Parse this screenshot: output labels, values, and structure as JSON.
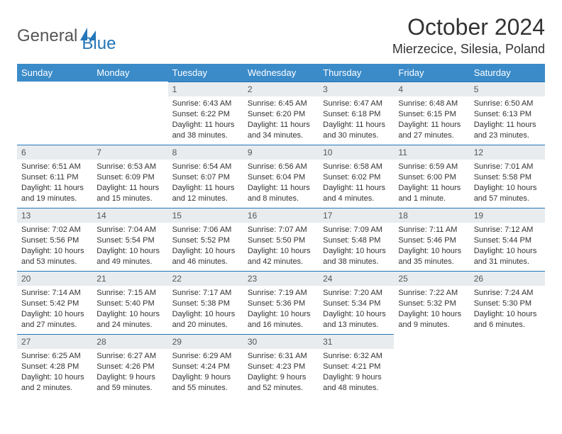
{
  "logo": {
    "part1": "General",
    "part2": "Blue"
  },
  "title": "October 2024",
  "location": "Mierzecice, Silesia, Poland",
  "colors": {
    "header_bg": "#3b8bc9",
    "daynum_bg": "#e8ecef",
    "border": "#2476b8",
    "logo_blue": "#2476b8",
    "text": "#333333"
  },
  "daynames": [
    "Sunday",
    "Monday",
    "Tuesday",
    "Wednesday",
    "Thursday",
    "Friday",
    "Saturday"
  ],
  "weeks": [
    [
      null,
      null,
      {
        "n": "1",
        "sr": "Sunrise: 6:43 AM",
        "ss": "Sunset: 6:22 PM",
        "d1": "Daylight: 11 hours",
        "d2": "and 38 minutes."
      },
      {
        "n": "2",
        "sr": "Sunrise: 6:45 AM",
        "ss": "Sunset: 6:20 PM",
        "d1": "Daylight: 11 hours",
        "d2": "and 34 minutes."
      },
      {
        "n": "3",
        "sr": "Sunrise: 6:47 AM",
        "ss": "Sunset: 6:18 PM",
        "d1": "Daylight: 11 hours",
        "d2": "and 30 minutes."
      },
      {
        "n": "4",
        "sr": "Sunrise: 6:48 AM",
        "ss": "Sunset: 6:15 PM",
        "d1": "Daylight: 11 hours",
        "d2": "and 27 minutes."
      },
      {
        "n": "5",
        "sr": "Sunrise: 6:50 AM",
        "ss": "Sunset: 6:13 PM",
        "d1": "Daylight: 11 hours",
        "d2": "and 23 minutes."
      }
    ],
    [
      {
        "n": "6",
        "sr": "Sunrise: 6:51 AM",
        "ss": "Sunset: 6:11 PM",
        "d1": "Daylight: 11 hours",
        "d2": "and 19 minutes."
      },
      {
        "n": "7",
        "sr": "Sunrise: 6:53 AM",
        "ss": "Sunset: 6:09 PM",
        "d1": "Daylight: 11 hours",
        "d2": "and 15 minutes."
      },
      {
        "n": "8",
        "sr": "Sunrise: 6:54 AM",
        "ss": "Sunset: 6:07 PM",
        "d1": "Daylight: 11 hours",
        "d2": "and 12 minutes."
      },
      {
        "n": "9",
        "sr": "Sunrise: 6:56 AM",
        "ss": "Sunset: 6:04 PM",
        "d1": "Daylight: 11 hours",
        "d2": "and 8 minutes."
      },
      {
        "n": "10",
        "sr": "Sunrise: 6:58 AM",
        "ss": "Sunset: 6:02 PM",
        "d1": "Daylight: 11 hours",
        "d2": "and 4 minutes."
      },
      {
        "n": "11",
        "sr": "Sunrise: 6:59 AM",
        "ss": "Sunset: 6:00 PM",
        "d1": "Daylight: 11 hours",
        "d2": "and 1 minute."
      },
      {
        "n": "12",
        "sr": "Sunrise: 7:01 AM",
        "ss": "Sunset: 5:58 PM",
        "d1": "Daylight: 10 hours",
        "d2": "and 57 minutes."
      }
    ],
    [
      {
        "n": "13",
        "sr": "Sunrise: 7:02 AM",
        "ss": "Sunset: 5:56 PM",
        "d1": "Daylight: 10 hours",
        "d2": "and 53 minutes."
      },
      {
        "n": "14",
        "sr": "Sunrise: 7:04 AM",
        "ss": "Sunset: 5:54 PM",
        "d1": "Daylight: 10 hours",
        "d2": "and 49 minutes."
      },
      {
        "n": "15",
        "sr": "Sunrise: 7:06 AM",
        "ss": "Sunset: 5:52 PM",
        "d1": "Daylight: 10 hours",
        "d2": "and 46 minutes."
      },
      {
        "n": "16",
        "sr": "Sunrise: 7:07 AM",
        "ss": "Sunset: 5:50 PM",
        "d1": "Daylight: 10 hours",
        "d2": "and 42 minutes."
      },
      {
        "n": "17",
        "sr": "Sunrise: 7:09 AM",
        "ss": "Sunset: 5:48 PM",
        "d1": "Daylight: 10 hours",
        "d2": "and 38 minutes."
      },
      {
        "n": "18",
        "sr": "Sunrise: 7:11 AM",
        "ss": "Sunset: 5:46 PM",
        "d1": "Daylight: 10 hours",
        "d2": "and 35 minutes."
      },
      {
        "n": "19",
        "sr": "Sunrise: 7:12 AM",
        "ss": "Sunset: 5:44 PM",
        "d1": "Daylight: 10 hours",
        "d2": "and 31 minutes."
      }
    ],
    [
      {
        "n": "20",
        "sr": "Sunrise: 7:14 AM",
        "ss": "Sunset: 5:42 PM",
        "d1": "Daylight: 10 hours",
        "d2": "and 27 minutes."
      },
      {
        "n": "21",
        "sr": "Sunrise: 7:15 AM",
        "ss": "Sunset: 5:40 PM",
        "d1": "Daylight: 10 hours",
        "d2": "and 24 minutes."
      },
      {
        "n": "22",
        "sr": "Sunrise: 7:17 AM",
        "ss": "Sunset: 5:38 PM",
        "d1": "Daylight: 10 hours",
        "d2": "and 20 minutes."
      },
      {
        "n": "23",
        "sr": "Sunrise: 7:19 AM",
        "ss": "Sunset: 5:36 PM",
        "d1": "Daylight: 10 hours",
        "d2": "and 16 minutes."
      },
      {
        "n": "24",
        "sr": "Sunrise: 7:20 AM",
        "ss": "Sunset: 5:34 PM",
        "d1": "Daylight: 10 hours",
        "d2": "and 13 minutes."
      },
      {
        "n": "25",
        "sr": "Sunrise: 7:22 AM",
        "ss": "Sunset: 5:32 PM",
        "d1": "Daylight: 10 hours",
        "d2": "and 9 minutes."
      },
      {
        "n": "26",
        "sr": "Sunrise: 7:24 AM",
        "ss": "Sunset: 5:30 PM",
        "d1": "Daylight: 10 hours",
        "d2": "and 6 minutes."
      }
    ],
    [
      {
        "n": "27",
        "sr": "Sunrise: 6:25 AM",
        "ss": "Sunset: 4:28 PM",
        "d1": "Daylight: 10 hours",
        "d2": "and 2 minutes."
      },
      {
        "n": "28",
        "sr": "Sunrise: 6:27 AM",
        "ss": "Sunset: 4:26 PM",
        "d1": "Daylight: 9 hours",
        "d2": "and 59 minutes."
      },
      {
        "n": "29",
        "sr": "Sunrise: 6:29 AM",
        "ss": "Sunset: 4:24 PM",
        "d1": "Daylight: 9 hours",
        "d2": "and 55 minutes."
      },
      {
        "n": "30",
        "sr": "Sunrise: 6:31 AM",
        "ss": "Sunset: 4:23 PM",
        "d1": "Daylight: 9 hours",
        "d2": "and 52 minutes."
      },
      {
        "n": "31",
        "sr": "Sunrise: 6:32 AM",
        "ss": "Sunset: 4:21 PM",
        "d1": "Daylight: 9 hours",
        "d2": "and 48 minutes."
      },
      null,
      null
    ]
  ]
}
